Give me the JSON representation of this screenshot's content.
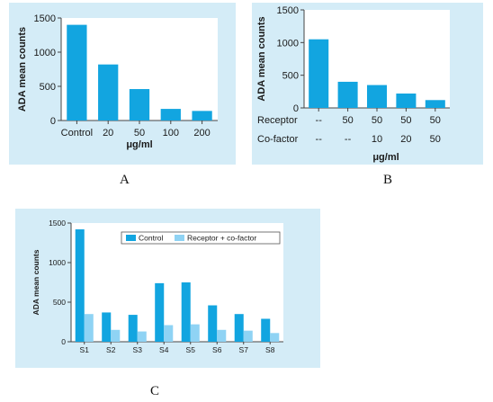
{
  "chart_data": [
    {
      "type": "bar",
      "ylabel": "ADA mean counts",
      "xlabel": "μg/ml",
      "categories": [
        "Control",
        "20",
        "50",
        "100",
        "200"
      ],
      "values": [
        1400,
        820,
        460,
        170,
        140
      ],
      "ylim": [
        0,
        1500
      ],
      "yticks": [
        0,
        500,
        1000,
        1500
      ],
      "color": "#12a5e0",
      "caption": "A"
    },
    {
      "type": "bar",
      "ylabel": "ADA mean counts",
      "xlabel": "μg/ml",
      "row_labels": [
        "Receptor",
        "Co-factor"
      ],
      "rows": [
        [
          "--",
          "50",
          "50",
          "50",
          "50"
        ],
        [
          "--",
          "--",
          "10",
          "20",
          "50"
        ]
      ],
      "values": [
        1050,
        400,
        350,
        220,
        120
      ],
      "ylim": [
        0,
        1500
      ],
      "yticks": [
        0,
        500,
        1000,
        1500
      ],
      "color": "#12a5e0",
      "caption": "B"
    },
    {
      "type": "bar",
      "ylabel": "ADA mean counts",
      "categories": [
        "S1",
        "S2",
        "S3",
        "S4",
        "S5",
        "S6",
        "S7",
        "S8"
      ],
      "series": [
        {
          "name": "Control",
          "color": "#12a5e0",
          "values": [
            1420,
            370,
            340,
            740,
            750,
            460,
            350,
            290
          ]
        },
        {
          "name": "Receptor + co-factor",
          "color": "#8fd3f4",
          "values": [
            350,
            150,
            130,
            210,
            220,
            150,
            140,
            110
          ]
        }
      ],
      "ylim": [
        0,
        1500
      ],
      "yticks": [
        0,
        500,
        1000,
        1500
      ],
      "legend": "top-right",
      "caption": "C"
    }
  ]
}
